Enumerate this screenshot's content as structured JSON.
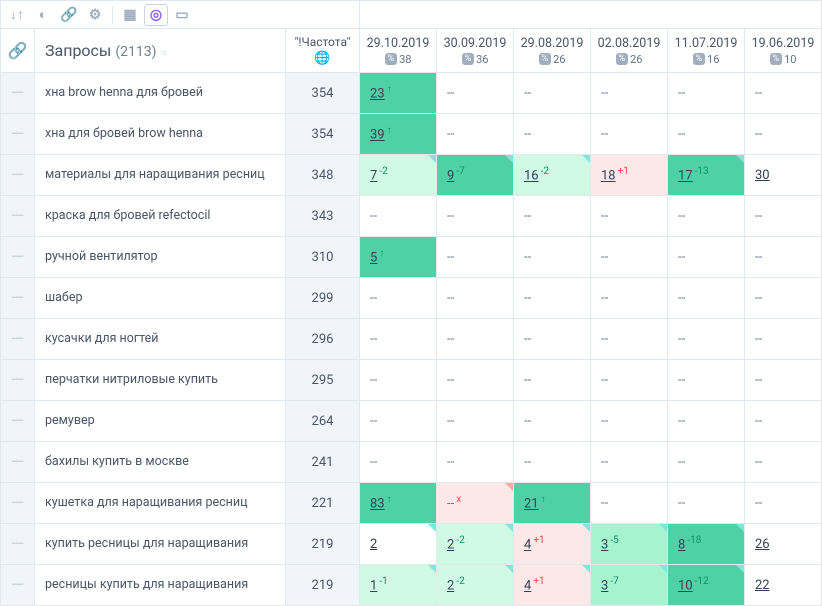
{
  "colors": {
    "strongGreen": "#4fd1a5",
    "lightGreen": "#d1fae5",
    "lightRed": "#fde8e8",
    "midGreen": "#a7f3d0",
    "deltaUp": "#059669",
    "deltaDown": "#ef4444",
    "foldGreen": "#81e6d9",
    "foldRed": "#fca5a5"
  },
  "toolbar": {
    "icons": [
      "sort-icon",
      "toggle-icon",
      "link-icon",
      "settings-icon",
      "sep",
      "grid-icon",
      "target-icon",
      "cards-icon"
    ]
  },
  "header": {
    "queries_label": "Запросы",
    "queries_count": "(2113)",
    "freq_label": "\"!Частота\"",
    "date_cols": [
      {
        "date": "29.10.2019",
        "num": "38"
      },
      {
        "date": "30.09.2019",
        "num": "36"
      },
      {
        "date": "29.08.2019",
        "num": "26"
      },
      {
        "date": "02.08.2019",
        "num": "26"
      },
      {
        "date": "11.07.2019",
        "num": "16"
      },
      {
        "date": "19.06.2019",
        "num": "10"
      }
    ]
  },
  "rows": [
    {
      "q": "хна brow henna для бровей",
      "f": "354",
      "c": [
        {
          "v": "23",
          "d": "↑",
          "dc": "deltaUp",
          "bg": "strongGreen"
        },
        {
          "v": "--"
        },
        {
          "v": "--"
        },
        {
          "v": "--"
        },
        {
          "v": "--"
        },
        {
          "v": "--"
        }
      ]
    },
    {
      "q": "хна для бровей brow henna",
      "f": "354",
      "c": [
        {
          "v": "39",
          "d": "↑",
          "dc": "deltaUp",
          "bg": "strongGreen"
        },
        {
          "v": "--"
        },
        {
          "v": "--"
        },
        {
          "v": "--"
        },
        {
          "v": "--"
        },
        {
          "v": "--"
        }
      ]
    },
    {
      "q": "материалы для наращивания ресниц",
      "f": "348",
      "c": [
        {
          "v": "7",
          "d": "-2",
          "dc": "deltaUp",
          "bg": "lightGreen",
          "fold": "foldGreen"
        },
        {
          "v": "9",
          "d": "-7",
          "dc": "deltaUp",
          "bg": "strongGreen",
          "fold": "foldGreen"
        },
        {
          "v": "16",
          "d": "-2",
          "dc": "deltaUp",
          "bg": "lightGreen",
          "fold": "foldGreen"
        },
        {
          "v": "18",
          "d": "+1",
          "dc": "deltaDown",
          "bg": "lightRed"
        },
        {
          "v": "17",
          "d": "-13",
          "dc": "deltaUp",
          "bg": "strongGreen",
          "fold": "foldGreen"
        },
        {
          "v": "30"
        }
      ]
    },
    {
      "q": "краска для бровей refectocil",
      "f": "343",
      "c": [
        {
          "v": "--"
        },
        {
          "v": "--"
        },
        {
          "v": "--"
        },
        {
          "v": "--"
        },
        {
          "v": "--"
        },
        {
          "v": "--"
        }
      ]
    },
    {
      "q": "ручной вентилятор",
      "f": "310",
      "c": [
        {
          "v": "5",
          "d": "↑",
          "dc": "deltaUp",
          "bg": "strongGreen"
        },
        {
          "v": "--"
        },
        {
          "v": "--"
        },
        {
          "v": "--"
        },
        {
          "v": "--"
        },
        {
          "v": "--"
        }
      ]
    },
    {
      "q": "шабер",
      "f": "299",
      "c": [
        {
          "v": "--"
        },
        {
          "v": "--"
        },
        {
          "v": "--"
        },
        {
          "v": "--"
        },
        {
          "v": "--"
        },
        {
          "v": "--"
        }
      ]
    },
    {
      "q": "кусачки для ногтей",
      "f": "296",
      "c": [
        {
          "v": "--"
        },
        {
          "v": "--"
        },
        {
          "v": "--"
        },
        {
          "v": "--"
        },
        {
          "v": "--"
        },
        {
          "v": "--"
        }
      ]
    },
    {
      "q": "перчатки нитриловые купить",
      "f": "295",
      "c": [
        {
          "v": "--"
        },
        {
          "v": "--"
        },
        {
          "v": "--"
        },
        {
          "v": "--"
        },
        {
          "v": "--"
        },
        {
          "v": "--"
        }
      ]
    },
    {
      "q": "ремувер",
      "f": "264",
      "c": [
        {
          "v": "--"
        },
        {
          "v": "--"
        },
        {
          "v": "--"
        },
        {
          "v": "--"
        },
        {
          "v": "--"
        },
        {
          "v": "--"
        }
      ]
    },
    {
      "q": "бахилы купить в москве",
      "f": "241",
      "c": [
        {
          "v": "--"
        },
        {
          "v": "--"
        },
        {
          "v": "--"
        },
        {
          "v": "--"
        },
        {
          "v": "--"
        },
        {
          "v": "--"
        }
      ]
    },
    {
      "q": "кушетка для наращивания ресниц",
      "f": "221",
      "c": [
        {
          "v": "83",
          "d": "↑",
          "dc": "deltaUp",
          "bg": "strongGreen"
        },
        {
          "v": "--",
          "d": "x",
          "dc": "deltaDown",
          "bg": "lightRed",
          "fold": "foldRed"
        },
        {
          "v": "21",
          "d": "↑",
          "dc": "deltaUp",
          "bg": "strongGreen"
        },
        {
          "v": "--"
        },
        {
          "v": "--"
        },
        {
          "v": "--"
        }
      ]
    },
    {
      "q": "купить ресницы для наращивания",
      "f": "219",
      "c": [
        {
          "v": "2",
          "fold": "foldGreen"
        },
        {
          "v": "2",
          "d": "-2",
          "dc": "deltaUp",
          "bg": "lightGreen",
          "fold": "foldGreen"
        },
        {
          "v": "4",
          "d": "+1",
          "dc": "deltaDown",
          "bg": "lightRed",
          "fold": "foldGreen"
        },
        {
          "v": "3",
          "d": "-5",
          "dc": "deltaUp",
          "bg": "midGreen",
          "fold": "foldGreen"
        },
        {
          "v": "8",
          "d": "-18",
          "dc": "deltaUp",
          "bg": "strongGreen",
          "fold": "foldGreen"
        },
        {
          "v": "26"
        }
      ]
    },
    {
      "q": "ресницы купить для наращивания",
      "f": "219",
      "c": [
        {
          "v": "1",
          "d": "-1",
          "dc": "deltaUp",
          "bg": "lightGreen",
          "fold": "foldGreen"
        },
        {
          "v": "2",
          "d": "-2",
          "dc": "deltaUp",
          "bg": "lightGreen",
          "fold": "foldGreen"
        },
        {
          "v": "4",
          "d": "+1",
          "dc": "deltaDown",
          "bg": "lightRed",
          "fold": "foldGreen"
        },
        {
          "v": "3",
          "d": "-7",
          "dc": "deltaUp",
          "bg": "midGreen",
          "fold": "foldGreen"
        },
        {
          "v": "10",
          "d": "-12",
          "dc": "deltaUp",
          "bg": "strongGreen",
          "fold": "foldGreen"
        },
        {
          "v": "22"
        }
      ]
    }
  ]
}
